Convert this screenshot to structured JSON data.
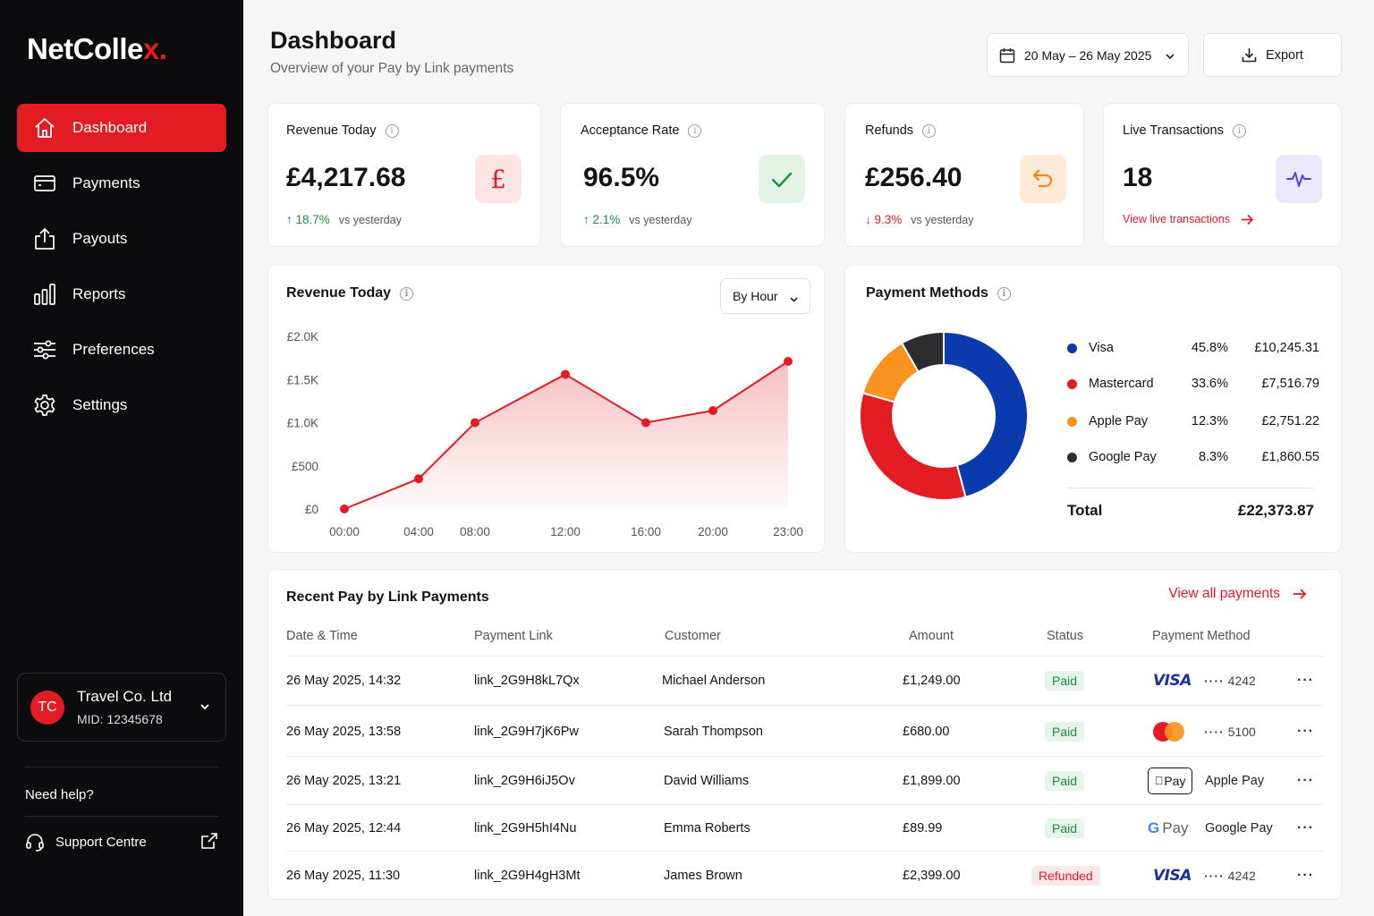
{
  "brand": {
    "name": "NetColle",
    "accent_letter": "x.",
    "accent": "#e31b23"
  },
  "nav": [
    {
      "label": "Dashboard",
      "icon": "home-icon",
      "active": true
    },
    {
      "label": "Payments",
      "icon": "card-icon"
    },
    {
      "label": "Payouts",
      "icon": "upload-icon"
    },
    {
      "label": "Reports",
      "icon": "bar-chart-icon"
    },
    {
      "label": "Preferences",
      "icon": "sliders-icon"
    },
    {
      "label": "Settings",
      "icon": "gear-icon"
    }
  ],
  "merchant": {
    "initials": "TC",
    "name": "Travel Co. Ltd",
    "mid": "MID: 12345678"
  },
  "help": {
    "title": "Need help?",
    "support_label": "Support Centre"
  },
  "header": {
    "title": "Dashboard",
    "subtitle": "Overview of your Pay by Link payments",
    "date_range": "20 May – 26 May 2025",
    "export_label": "Export"
  },
  "kpis": [
    {
      "title": "Revenue Today",
      "value": "£4,217.68",
      "change": "↑ 18.7%",
      "direction": "up",
      "compare": "vs yesterday",
      "icon": "pound-icon"
    },
    {
      "title": "Acceptance Rate",
      "value": "96.5%",
      "change": "↑ 2.1%",
      "direction": "up",
      "compare": "vs yesterday",
      "icon": "check-icon"
    },
    {
      "title": "Refunds",
      "value": "£256.40",
      "change": "↓ 9.3%",
      "direction": "down",
      "compare": "vs yesterday",
      "icon": "refund-icon"
    },
    {
      "title": "Live Transactions",
      "value": "18",
      "link": "View live transactions",
      "icon": "pulse-icon"
    }
  ],
  "revenue_chart": {
    "title": "Revenue Today",
    "filter": "By Hour",
    "y_ticks": [
      "£2.0K",
      "£1.5K",
      "£1.0K",
      "£500",
      "£0"
    ],
    "x_ticks": [
      "00:00",
      "04:00",
      "08:00",
      "12:00",
      "16:00",
      "20:00",
      "23:00"
    ]
  },
  "chart_data": {
    "type": "area",
    "x": [
      "00:00",
      "04:00",
      "08:00",
      "12:00",
      "16:00",
      "20:00",
      "23:00"
    ],
    "values": [
      0,
      350,
      1000,
      1560,
      1000,
      1140,
      1710
    ],
    "ylim": [
      0,
      2000
    ],
    "color": "#e31b23"
  },
  "payment_methods": {
    "title": "Payment Methods",
    "items": [
      {
        "name": "Visa",
        "pct": "45.8%",
        "value": 45.8,
        "amount": "£10,245.31",
        "color": "#0a3aad"
      },
      {
        "name": "Mastercard",
        "pct": "33.6%",
        "value": 33.6,
        "amount": "£7,516.79",
        "color": "#e31b23"
      },
      {
        "name": "Apple Pay",
        "pct": "12.3%",
        "value": 12.3,
        "amount": "£2,751.22",
        "color": "#f7931e"
      },
      {
        "name": "Google Pay",
        "pct": "8.3%",
        "value": 8.3,
        "amount": "£1,860.55",
        "color": "#2d2d2f"
      }
    ],
    "total_label": "Total",
    "total_value": "£22,373.87"
  },
  "recent": {
    "title": "Recent Pay by Link Payments",
    "view_all": "View all payments",
    "columns": [
      "Date & Time",
      "Payment Link",
      "Customer",
      "Amount",
      "Status",
      "Payment Method"
    ],
    "rows": [
      {
        "date": "26 May 2025, 14:32",
        "link": "link_2G9H8kL7Qx",
        "customer": "Michael Anderson",
        "amount": "£1,249.00",
        "status": "Paid",
        "method": "visa",
        "brand": "VISA",
        "detail": "4242"
      },
      {
        "date": "26 May 2025, 13:58",
        "link": "link_2G9H7jK6Pw",
        "customer": "Sarah Thompson",
        "amount": "£680.00",
        "status": "Paid",
        "method": "mastercard",
        "brand": "",
        "detail": "5100"
      },
      {
        "date": "26 May 2025, 13:21",
        "link": "link_2G9H6iJ5Ov",
        "customer": "David Williams",
        "amount": "£1,899.00",
        "status": "Paid",
        "method": "applepay",
        "brand": "Pay",
        "detail": "Apple Pay"
      },
      {
        "date": "26 May 2025, 12:44",
        "link": "link_2G9H5hI4Nu",
        "customer": "Emma Roberts",
        "amount": "£89.99",
        "status": "Paid",
        "method": "googlepay",
        "brand": "Pay",
        "detail": "Google Pay"
      },
      {
        "date": "26 May 2025, 11:30",
        "link": "link_2G9H4gH3Mt",
        "customer": "James Brown",
        "amount": "£2,399.00",
        "status": "Refunded",
        "method": "visa",
        "brand": "VISA",
        "detail": "4242"
      }
    ]
  }
}
